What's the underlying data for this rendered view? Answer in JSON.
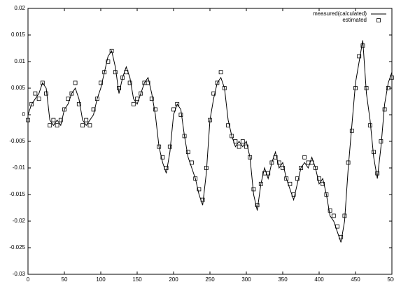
{
  "chart_data": {
    "type": "line",
    "x": [
      0,
      5,
      10,
      15,
      20,
      25,
      30,
      35,
      40,
      45,
      50,
      55,
      60,
      65,
      70,
      75,
      80,
      85,
      90,
      95,
      100,
      105,
      110,
      115,
      120,
      125,
      130,
      135,
      140,
      145,
      150,
      155,
      160,
      165,
      170,
      175,
      180,
      185,
      190,
      195,
      200,
      205,
      210,
      215,
      220,
      225,
      230,
      235,
      240,
      245,
      250,
      255,
      260,
      265,
      270,
      275,
      280,
      285,
      290,
      295,
      300,
      305,
      310,
      315,
      320,
      325,
      330,
      335,
      340,
      345,
      350,
      355,
      360,
      365,
      370,
      375,
      380,
      385,
      390,
      395,
      400,
      405,
      410,
      415,
      420,
      425,
      430,
      435,
      440,
      445,
      450,
      455,
      460,
      465,
      470,
      475,
      480,
      485,
      490,
      495,
      500
    ],
    "series": [
      {
        "name": "measured(calculated)",
        "color": "#000000",
        "style": "line",
        "values": [
          0.0,
          0.002,
          0.003,
          0.004,
          0.006,
          0.005,
          -0.001,
          -0.002,
          -0.001,
          -0.002,
          0.001,
          0.002,
          0.004,
          0.005,
          0.003,
          -0.001,
          -0.002,
          -0.001,
          0.0,
          0.003,
          0.005,
          0.008,
          0.011,
          0.012,
          0.009,
          0.004,
          0.007,
          0.009,
          0.007,
          0.003,
          0.002,
          0.004,
          0.006,
          0.007,
          0.004,
          0.0,
          -0.006,
          -0.009,
          -0.011,
          -0.007,
          0.0,
          0.002,
          0.001,
          -0.004,
          -0.008,
          -0.01,
          -0.012,
          -0.015,
          -0.017,
          -0.011,
          -0.001,
          0.003,
          0.006,
          0.007,
          0.005,
          -0.001,
          -0.004,
          -0.006,
          -0.005,
          -0.006,
          -0.005,
          -0.008,
          -0.015,
          -0.018,
          -0.013,
          -0.01,
          -0.012,
          -0.009,
          -0.007,
          -0.01,
          -0.009,
          -0.012,
          -0.014,
          -0.016,
          -0.013,
          -0.01,
          -0.009,
          -0.01,
          -0.008,
          -0.01,
          -0.013,
          -0.012,
          -0.015,
          -0.019,
          -0.02,
          -0.022,
          -0.024,
          -0.02,
          -0.01,
          -0.002,
          0.006,
          0.01,
          0.014,
          0.004,
          -0.001,
          -0.008,
          -0.012,
          -0.006,
          0.002,
          0.006,
          0.008
        ]
      },
      {
        "name": "estimated",
        "color": "#000000",
        "style": "square",
        "values": [
          -0.001,
          0.002,
          0.004,
          0.003,
          0.006,
          0.004,
          -0.002,
          -0.001,
          -0.002,
          -0.001,
          0.001,
          0.003,
          0.004,
          0.006,
          0.002,
          -0.002,
          -0.001,
          -0.002,
          0.001,
          0.003,
          0.006,
          0.008,
          0.01,
          0.012,
          0.008,
          0.005,
          0.007,
          0.008,
          0.006,
          0.002,
          0.003,
          0.004,
          0.006,
          0.006,
          0.003,
          0.001,
          -0.006,
          -0.008,
          -0.01,
          -0.006,
          0.001,
          0.002,
          0.0,
          -0.004,
          -0.007,
          -0.009,
          -0.012,
          -0.014,
          -0.016,
          -0.01,
          -0.001,
          0.004,
          0.006,
          0.008,
          0.005,
          -0.002,
          -0.004,
          -0.005,
          -0.006,
          -0.005,
          -0.006,
          -0.008,
          -0.014,
          -0.017,
          -0.013,
          -0.011,
          -0.011,
          -0.009,
          -0.008,
          -0.009,
          -0.01,
          -0.012,
          -0.013,
          -0.015,
          -0.012,
          -0.01,
          -0.008,
          -0.009,
          -0.009,
          -0.01,
          -0.012,
          -0.013,
          -0.015,
          -0.018,
          -0.019,
          -0.021,
          -0.023,
          -0.019,
          -0.009,
          -0.003,
          0.005,
          0.011,
          0.013,
          0.005,
          -0.002,
          -0.007,
          -0.011,
          -0.005,
          0.001,
          0.005,
          0.007
        ]
      }
    ],
    "xlim": [
      0,
      500
    ],
    "xticks": [
      0,
      50,
      100,
      150,
      200,
      250,
      300,
      350,
      400,
      450,
      500
    ],
    "ylim": [
      -0.03,
      0.02
    ],
    "yticks": [
      -0.03,
      -0.025,
      -0.02,
      -0.015,
      -0.01,
      -0.005,
      0,
      0.005,
      0.01,
      0.015,
      0.02
    ],
    "legend": "top-right"
  }
}
